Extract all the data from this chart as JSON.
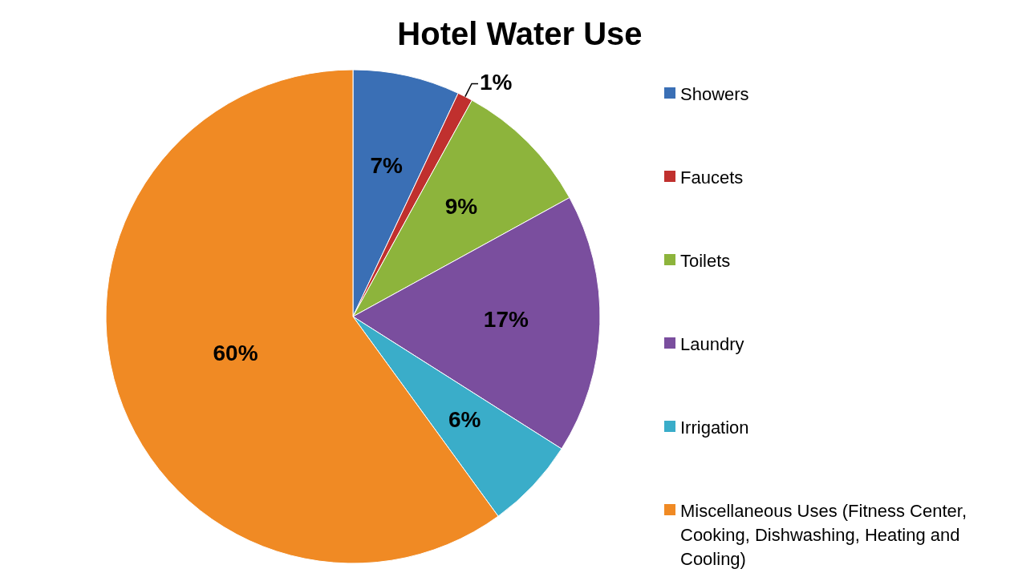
{
  "chart_data": {
    "type": "pie",
    "title": "Hotel Water Use",
    "categories": [
      "Showers",
      "Faucets",
      "Toilets",
      "Laundry",
      "Irrigation",
      "Miscellaneous Uses (Fitness Center, Cooking, Dishwashing, Heating and Cooling)"
    ],
    "values": [
      7,
      1,
      9,
      17,
      6,
      60
    ],
    "colors": [
      "#3a6fb5",
      "#c0302e",
      "#8db43c",
      "#7a4e9e",
      "#3aadc9",
      "#f08a24"
    ],
    "value_labels": [
      "7%",
      "1%",
      "9%",
      "17%",
      "6%",
      "60%"
    ],
    "legend": "right"
  }
}
